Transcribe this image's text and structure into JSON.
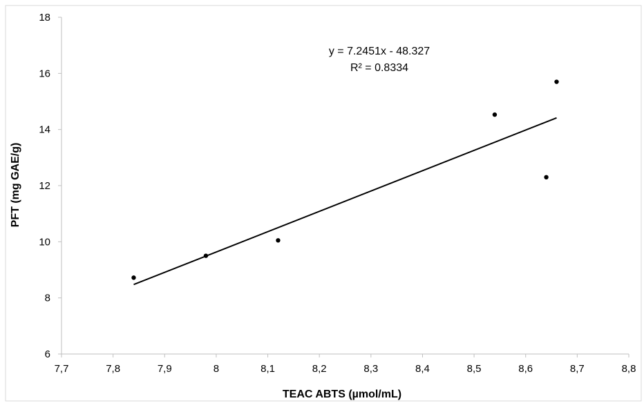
{
  "chart_data": {
    "type": "scatter",
    "xlabel": "TEAC ABTS (µmol/mL)",
    "ylabel": "PFT (mg GAE/g)",
    "xlim": [
      7.7,
      8.8
    ],
    "ylim": [
      6,
      18
    ],
    "x_ticks": [
      "7,7",
      "7,8",
      "7,9",
      "8",
      "8,1",
      "8,2",
      "8,3",
      "8,4",
      "8,5",
      "8,6",
      "8,7",
      "8,8"
    ],
    "y_ticks": [
      "6",
      "8",
      "10",
      "12",
      "14",
      "16",
      "18"
    ],
    "x_tick_values": [
      7.7,
      7.8,
      7.9,
      8.0,
      8.1,
      8.2,
      8.3,
      8.4,
      8.5,
      8.6,
      8.7,
      8.8
    ],
    "y_tick_values": [
      6,
      8,
      10,
      12,
      14,
      16,
      18
    ],
    "grid": false,
    "series": [
      {
        "points": [
          {
            "x": 7.84,
            "y": 8.72
          },
          {
            "x": 7.98,
            "y": 9.5
          },
          {
            "x": 8.12,
            "y": 10.05
          },
          {
            "x": 8.54,
            "y": 14.53
          },
          {
            "x": 8.64,
            "y": 12.3
          },
          {
            "x": 8.66,
            "y": 15.7
          }
        ],
        "color": "#000000"
      }
    ],
    "trendline": {
      "type": "linear",
      "slope": 7.2451,
      "intercept": -48.327,
      "x_range": [
        7.84,
        8.66
      ],
      "color": "#000000"
    },
    "annotations": {
      "equation": "y = 7.2451x - 48.327",
      "r_squared": "R² = 0.8334"
    }
  }
}
